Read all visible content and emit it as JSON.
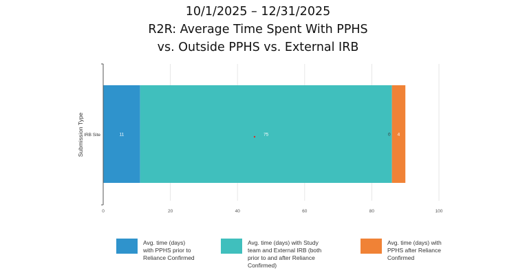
{
  "title_lines": [
    "10/1/2025 – 12/31/2025",
    "R2R: Average Time Spent With PPHS",
    "vs. Outside PPHS vs. External IRB"
  ],
  "chart_data": {
    "type": "bar",
    "orientation": "horizontal",
    "stacked": true,
    "categories": [
      "IRB Site"
    ],
    "series": [
      {
        "name": "Avg. time (days) with PPHS prior to Reliance Confirmed",
        "values": [
          11
        ],
        "color": "#2f93cc"
      },
      {
        "name": "Avg. time (days) with Study team and External IRB (both prior to and after Reliance Confirmed)",
        "values": [
          75
        ],
        "color": "#40bfbd"
      },
      {
        "name": "Avg. time (days) with PPHS after Reliance Confirmed",
        "values": [
          4
        ],
        "color": "#f08236"
      }
    ],
    "data_labels": [
      "11",
      "75",
      "4"
    ],
    "extra_label": "0",
    "ylabel": "Submission Type",
    "xlabel": "",
    "xlim": [
      0,
      100
    ],
    "xticks": [
      "0",
      "20",
      "40",
      "60",
      "80",
      "100"
    ],
    "grid": true,
    "legend_position": "bottom"
  },
  "legend_labels": [
    [
      "Avg. time (days)",
      "with PPHS prior to",
      "Reliance Confirmed"
    ],
    [
      "Avg. time (days) with Study",
      "team and External IRB (both",
      "prior to and after Reliance",
      "Confirmed)"
    ],
    [
      "Avg. time (days) with",
      "PPHS after Reliance",
      "Confirmed"
    ]
  ]
}
